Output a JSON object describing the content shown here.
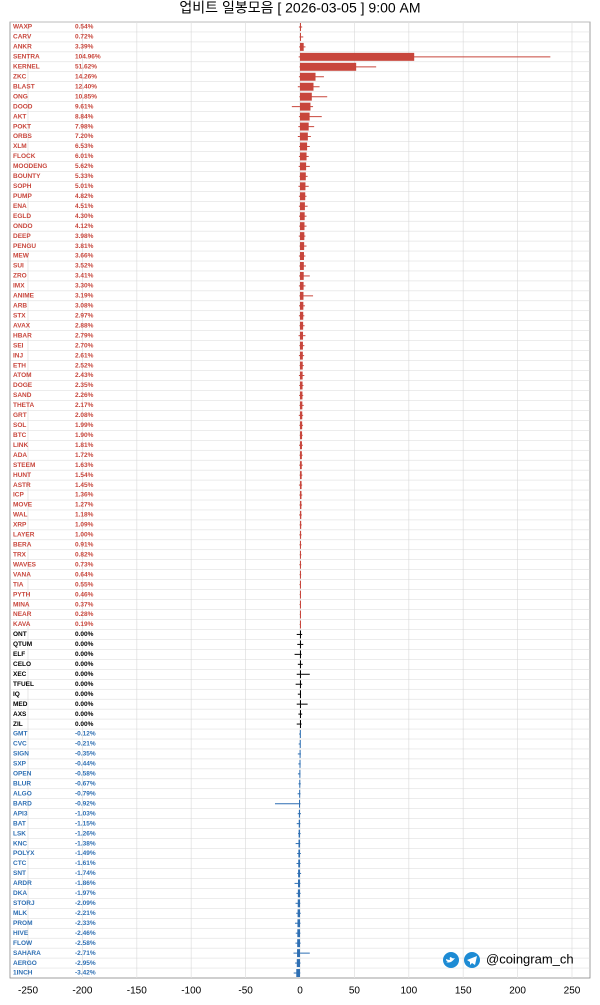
{
  "chart_data": {
    "type": "candlestick",
    "title": "업비트 일봉모음 [ 2026-03-05 ]  9:00 AM",
    "watermark": "@coingram_ch",
    "categories": [
      "WAXP",
      "CARV",
      "ANKR",
      "SENTRA",
      "KERNEL",
      "ZKC",
      "BLAST",
      "ONG",
      "DOOD",
      "AKT",
      "POKT",
      "ORBS",
      "XLM",
      "FLOCK",
      "MOODENG",
      "BOUNTY",
      "SOPH",
      "PUMP",
      "ENA",
      "EGLD",
      "ONDO",
      "DEEP",
      "PENGU",
      "MEW",
      "SUI",
      "ZRO",
      "IMX",
      "ANIME",
      "ARB",
      "STX",
      "AVAX",
      "HBAR",
      "SEI",
      "INJ",
      "ETH",
      "ATOM",
      "DOGE",
      "SAND",
      "THETA",
      "GRT",
      "SOL",
      "BTC",
      "LINK",
      "ADA",
      "STEEM",
      "HUNT",
      "ASTR",
      "ICP",
      "MOVE",
      "WAL",
      "XRP",
      "LAYER",
      "BERA",
      "TRX",
      "WAVES",
      "VANA",
      "TIA",
      "PYTH",
      "MINA",
      "NEAR",
      "KAVA",
      "ONT",
      "QTUM",
      "ELF",
      "CELO",
      "XEC",
      "TFUEL",
      "IQ",
      "MED",
      "AXS",
      "ZIL",
      "GMT",
      "CVC",
      "SIGN",
      "SXP",
      "OPEN",
      "BLUR",
      "ALGO",
      "BARD",
      "API3",
      "BAT",
      "LSK",
      "KNC",
      "POLYX",
      "CTC",
      "SNT",
      "ARDR",
      "DKA",
      "STORJ",
      "MLK",
      "PROM",
      "HIVE",
      "FLOW",
      "SAHARA",
      "AERGO",
      "1INCH"
    ],
    "values": [
      0.54,
      0.72,
      3.39,
      104.96,
      51.62,
      14.26,
      12.4,
      10.85,
      9.61,
      8.84,
      7.98,
      7.2,
      6.53,
      6.01,
      5.62,
      5.33,
      5.01,
      4.82,
      4.51,
      4.3,
      4.12,
      3.98,
      3.81,
      3.66,
      3.52,
      3.41,
      3.3,
      3.19,
      3.08,
      2.97,
      2.88,
      2.79,
      2.7,
      2.61,
      2.52,
      2.43,
      2.35,
      2.26,
      2.17,
      2.08,
      1.99,
      1.9,
      1.81,
      1.72,
      1.63,
      1.54,
      1.45,
      1.36,
      1.27,
      1.18,
      1.09,
      1.0,
      0.91,
      0.82,
      0.73,
      0.64,
      0.55,
      0.46,
      0.37,
      0.28,
      0.19,
      0,
      0,
      0,
      0,
      0,
      0,
      0,
      0,
      0,
      0,
      -0.12,
      -0.21,
      -0.35,
      -0.44,
      -0.58,
      -0.67,
      -0.79,
      -0.92,
      -1.03,
      -1.15,
      -1.26,
      -1.38,
      -1.49,
      -1.61,
      -1.74,
      -1.86,
      -1.97,
      -2.09,
      -2.21,
      -2.33,
      -2.46,
      -2.58,
      -2.71,
      -2.95,
      -3.42
    ],
    "value_labels": [
      "0.54%",
      "0.72%",
      "3.39%",
      "104.96%",
      "51.62%",
      "14.26%",
      "12.40%",
      "10.85%",
      "9.61%",
      "8.84%",
      "7.98%",
      "7.20%",
      "6.53%",
      "6.01%",
      "5.62%",
      "5.33%",
      "5.01%",
      "4.82%",
      "4.51%",
      "4.30%",
      "4.12%",
      "3.98%",
      "3.81%",
      "3.66%",
      "3.52%",
      "3.41%",
      "3.30%",
      "3.19%",
      "3.08%",
      "2.97%",
      "2.88%",
      "2.79%",
      "2.70%",
      "2.61%",
      "2.52%",
      "2.43%",
      "2.35%",
      "2.26%",
      "2.17%",
      "2.08%",
      "1.99%",
      "1.90%",
      "1.81%",
      "1.72%",
      "1.63%",
      "1.54%",
      "1.45%",
      "1.36%",
      "1.27%",
      "1.18%",
      "1.09%",
      "1.00%",
      "0.91%",
      "0.82%",
      "0.73%",
      "0.64%",
      "0.55%",
      "0.46%",
      "0.37%",
      "0.28%",
      "0.19%",
      "0.00%",
      "0.00%",
      "0.00%",
      "0.00%",
      "0.00%",
      "0.00%",
      "0.00%",
      "0.00%",
      "0.00%",
      "0.00%",
      "-0.12%",
      "-0.21%",
      "-0.35%",
      "-0.44%",
      "-0.58%",
      "-0.67%",
      "-0.79%",
      "-0.92%",
      "-1.03%",
      "-1.15%",
      "-1.26%",
      "-1.38%",
      "-1.49%",
      "-1.61%",
      "-1.74%",
      "-1.86%",
      "-1.97%",
      "-2.09%",
      "-2.21%",
      "-2.33%",
      "-2.46%",
      "-2.58%",
      "-2.71%",
      "-2.95%",
      "-3.42%"
    ],
    "high": [
      2,
      3,
      5,
      230.1,
      70,
      22,
      18,
      25,
      12,
      20,
      13,
      10,
      9,
      8,
      9,
      7,
      8,
      6,
      7,
      6,
      6,
      5,
      6,
      5,
      5.5,
      9,
      5,
      12,
      4.5,
      4,
      4.2,
      5,
      4,
      3.8,
      3.5,
      4,
      3.2,
      3,
      3.4,
      2.9,
      2.8,
      2.5,
      2.6,
      2.4,
      2.5,
      2.2,
      2,
      2.1,
      1.9,
      1.7,
      1.6,
      1.5,
      1.4,
      1.3,
      1.2,
      1.1,
      0.9,
      0.8,
      0.7,
      0.6,
      0.5,
      2,
      3,
      1.5,
      2.5,
      9,
      2,
      1,
      7,
      2,
      1.5,
      0.3,
      0.5,
      0.8,
      0.6,
      0.4,
      0.7,
      0.5,
      0.5,
      0.9,
      0.4,
      0.6,
      0.3,
      0.8,
      0.5,
      1,
      0.4,
      0.6,
      0.3,
      0.7,
      0.5,
      0.4,
      0.6,
      9,
      0.5,
      0.3
    ],
    "low": [
      -1,
      -0.5,
      -0.8,
      -1.2,
      -0.5,
      -1,
      -2,
      -0.6,
      -7.5,
      -1,
      -1.5,
      -2,
      -0.8,
      -1,
      -1.2,
      -0.5,
      -1.4,
      -1,
      -1,
      -0.9,
      -0.7,
      -1.1,
      -0.4,
      -1,
      -0.6,
      -0.8,
      -1,
      -0.6,
      -0.9,
      -1,
      -0.5,
      -1.3,
      -0.6,
      -1,
      -0.4,
      -1,
      -0.7,
      -0.8,
      -0.5,
      -1.1,
      -0.6,
      -0.3,
      -0.9,
      -0.5,
      -0.7,
      -0.4,
      -1,
      -0.6,
      -0.5,
      -0.8,
      -0.4,
      -0.6,
      -0.5,
      -0.3,
      -0.6,
      -0.4,
      -0.5,
      -0.3,
      -0.4,
      -0.2,
      -0.3,
      -3,
      -2.5,
      -5,
      -2,
      -3,
      -4,
      -2,
      -3,
      -1.5,
      -3,
      -0.8,
      -1.2,
      -2,
      -1.5,
      -1.9,
      -1.4,
      -2.2,
      -23,
      -2.1,
      -3,
      -1.8,
      -4,
      -2.6,
      -3.2,
      -2.5,
      -5,
      -3.3,
      -4.1,
      -3.5,
      -4.6,
      -3.9,
      -4.2,
      -6,
      -4.5,
      -5.8
    ],
    "colors": {
      "up": "#c8463c",
      "flat": "#000000",
      "down": "#2e6fb3"
    },
    "xlim": [
      -250,
      250
    ],
    "xticks": [
      -250,
      -200,
      -150,
      -100,
      -50,
      0,
      50,
      100,
      150,
      200,
      250
    ],
    "grid": true
  }
}
